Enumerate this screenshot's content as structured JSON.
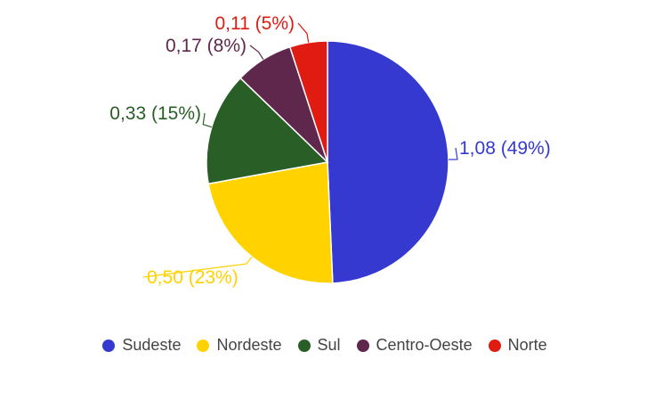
{
  "chart_data": {
    "type": "pie",
    "categories": [
      "Sudeste",
      "Nordeste",
      "Sul",
      "Centro-Oeste",
      "Norte"
    ],
    "values": [
      1.08,
      0.5,
      0.33,
      0.17,
      0.11
    ],
    "labels": [
      "1,08 (49%)",
      "0,50 (23%)",
      "0,33 (15%)",
      "0,17 (8%)",
      "0,11 (5%)"
    ],
    "colors": [
      "#3539cf",
      "#ffd200",
      "#295e27",
      "#5f274c",
      "#e01b12"
    ],
    "legend_position": "bottom"
  }
}
